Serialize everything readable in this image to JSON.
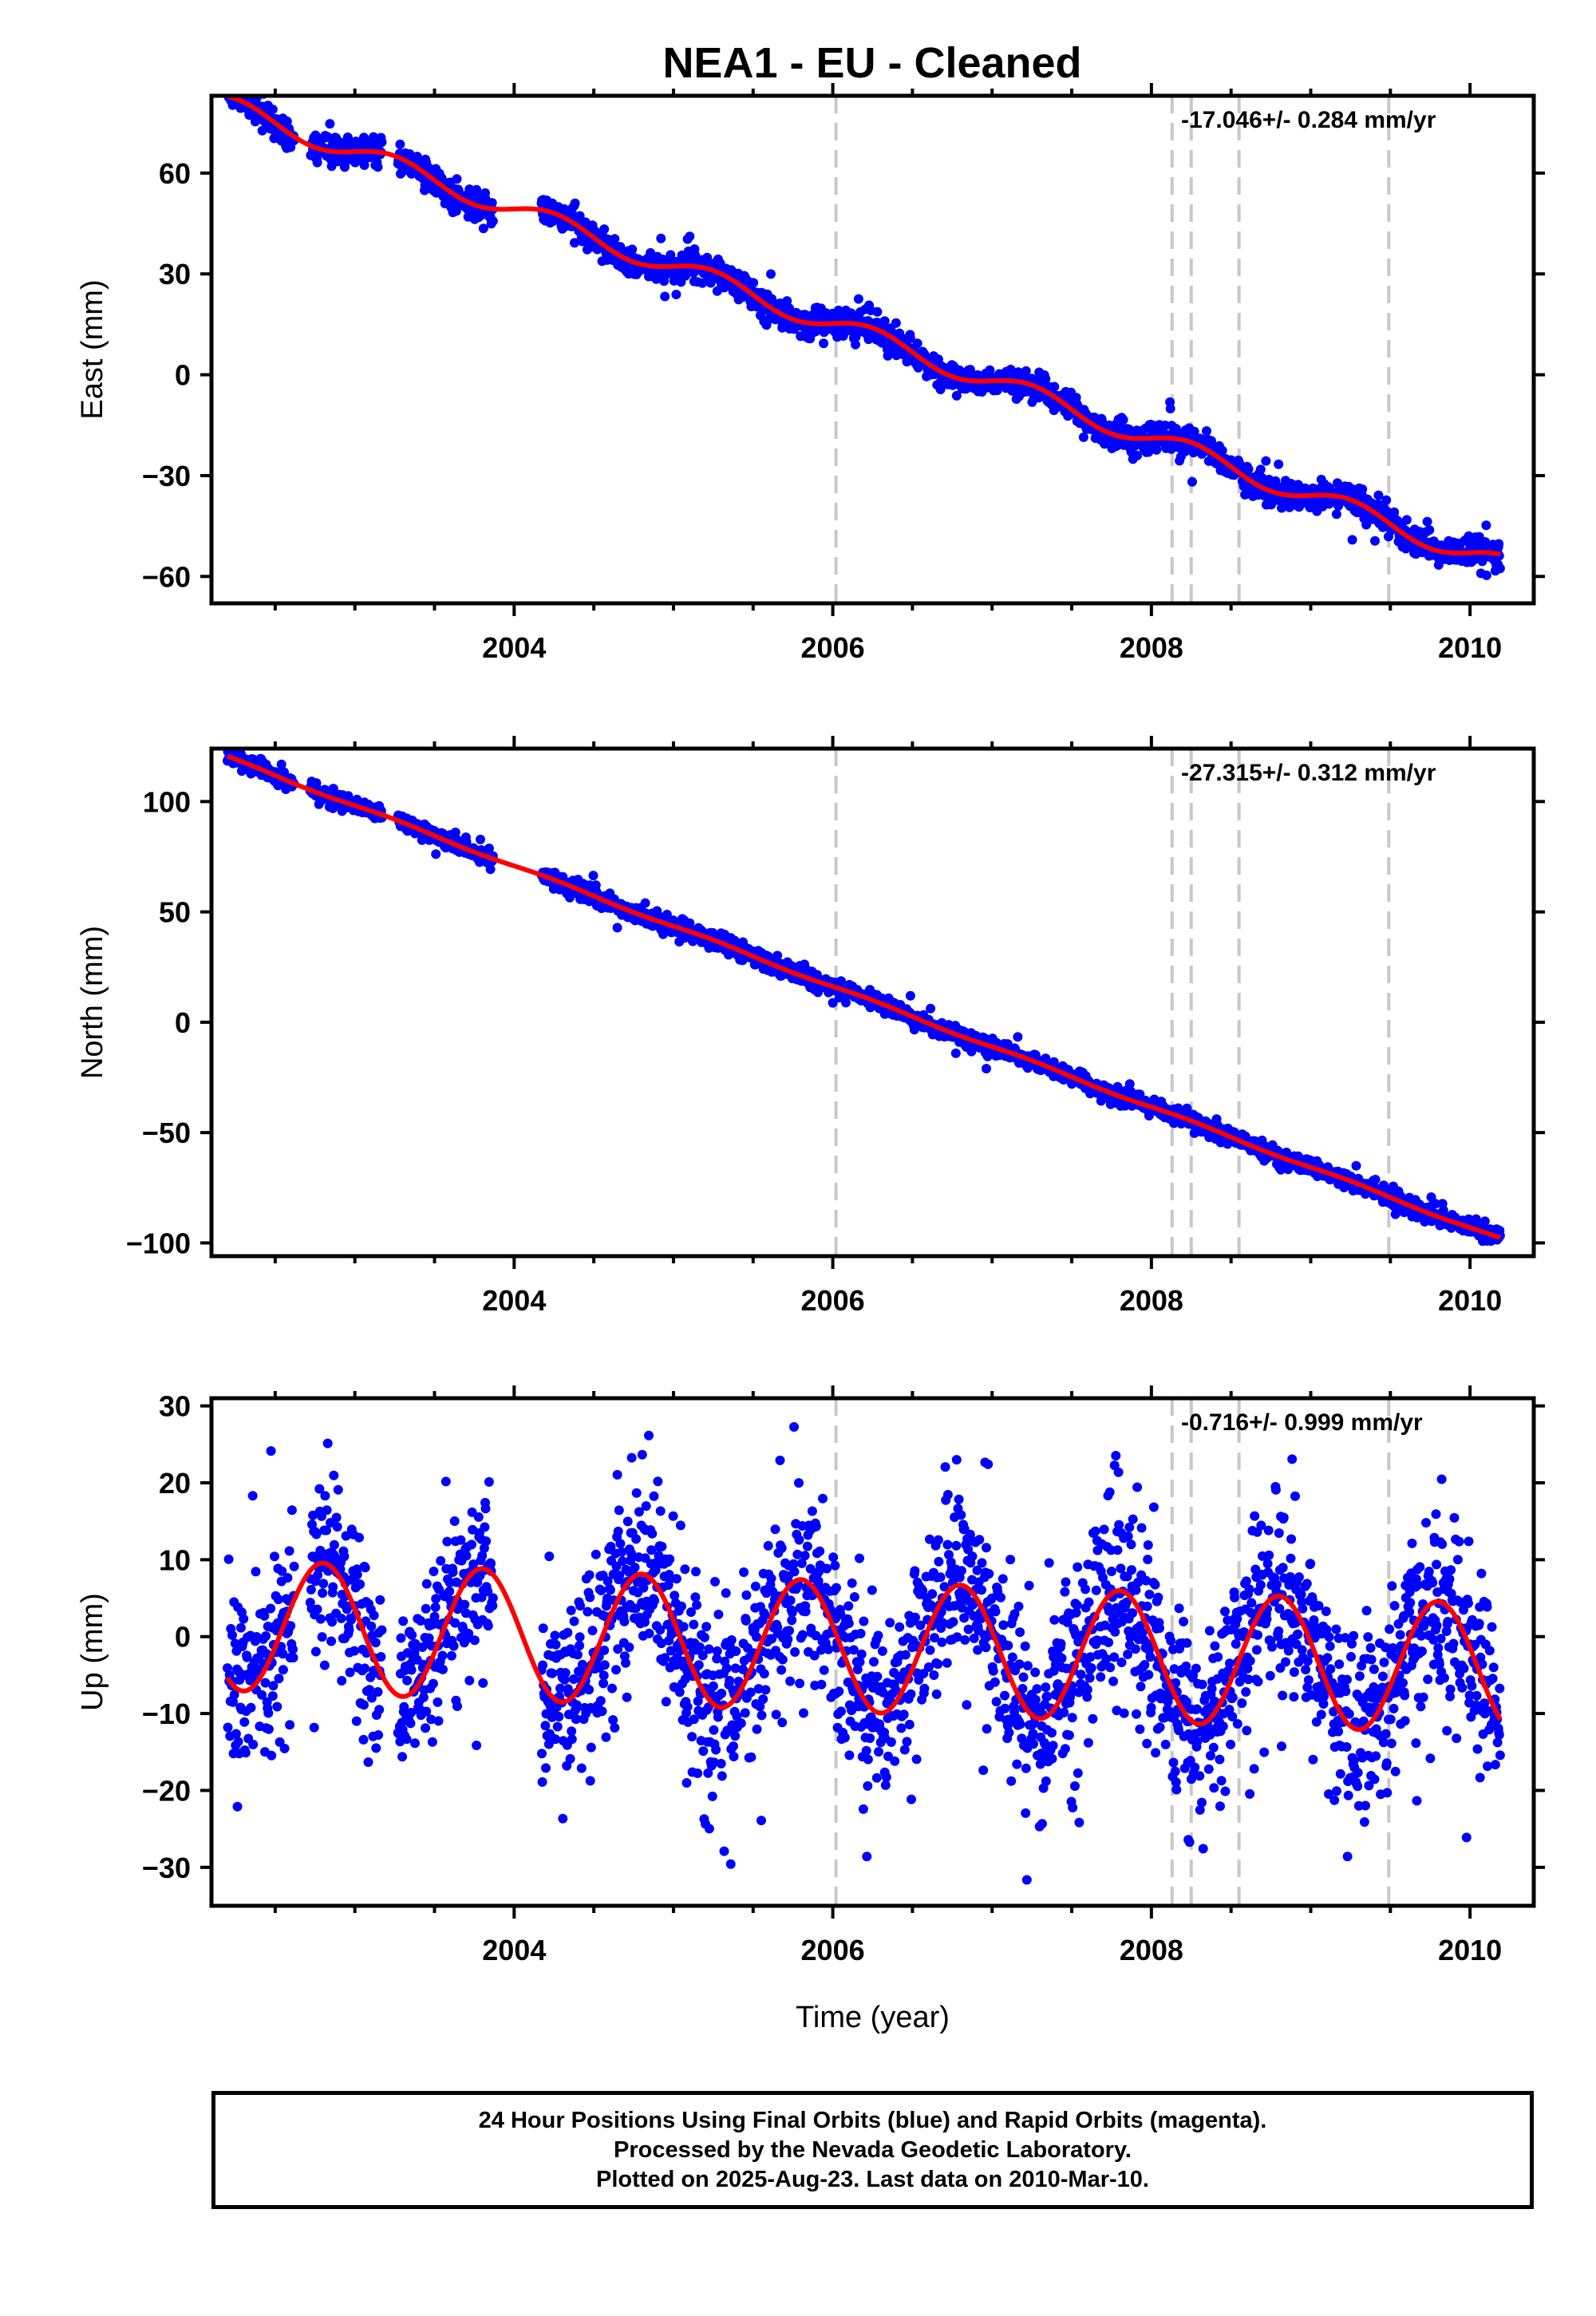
{
  "title": "NEA1  - EU - Cleaned",
  "colors": {
    "data": "#0000ff",
    "model": "#ff0000",
    "event_line": "#c8c8c8",
    "frame": "#000000"
  },
  "chart_data": [
    {
      "type": "scatter",
      "ylabel": "East (mm)",
      "rate_label": "-17.046+/- 0.284 mm/yr",
      "xlim": [
        2002.1,
        2010.4
      ],
      "ylim": [
        -68,
        83
      ],
      "yticks": [
        60,
        30,
        0,
        -30,
        -60
      ],
      "ytick_labels": [
        "60",
        "30",
        "0",
        "−30",
        "−60"
      ],
      "xticks": [
        2004,
        2006,
        2008,
        2010
      ],
      "xtick_labels": [
        "2004",
        "2006",
        "2008",
        "2010"
      ],
      "event_lines": [
        2006.02,
        2008.13,
        2008.25,
        2008.55,
        2009.49
      ],
      "data_gaps": [
        [
          2002.62,
          2002.72
        ],
        [
          2003.17,
          2003.27
        ],
        [
          2003.87,
          2004.17
        ]
      ],
      "model": {
        "x0": 2002.2,
        "intercept": 80.0,
        "rate": -17.046,
        "annual": 3.0,
        "phase": 0.0,
        "semiannual": 0.0,
        "noise_sd": 2.0,
        "outlier_sd": 5.0
      }
    },
    {
      "type": "scatter",
      "ylabel": "North (mm)",
      "rate_label": "-27.315+/- 0.312 mm/yr",
      "xlim": [
        2002.1,
        2010.4
      ],
      "ylim": [
        -106,
        124
      ],
      "yticks": [
        100,
        50,
        0,
        -50,
        -100
      ],
      "ytick_labels": [
        "100",
        "50",
        "0",
        "−50",
        "−100"
      ],
      "xticks": [
        2004,
        2006,
        2008,
        2010
      ],
      "xtick_labels": [
        "2004",
        "2006",
        "2008",
        "2010"
      ],
      "event_lines": [
        2006.02,
        2008.13,
        2008.25,
        2008.55,
        2009.49
      ],
      "data_gaps": [
        [
          2002.62,
          2002.72
        ],
        [
          2003.17,
          2003.27
        ],
        [
          2003.87,
          2004.17
        ]
      ],
      "model": {
        "x0": 2002.2,
        "intercept": 120.0,
        "rate": -27.315,
        "annual": 0.6,
        "phase": 0.0,
        "semiannual": 0.0,
        "noise_sd": 1.8,
        "outlier_sd": 4.0
      }
    },
    {
      "type": "scatter",
      "ylabel": "Up (mm)",
      "xlabel": "Time (year)",
      "rate_label": "-0.716+/- 0.999 mm/yr",
      "xlim": [
        2002.1,
        2010.4
      ],
      "ylim": [
        -35,
        31
      ],
      "yticks": [
        30,
        20,
        10,
        0,
        -10,
        -20,
        -30
      ],
      "ytick_labels": [
        "30",
        "20",
        "10",
        "0",
        "−10",
        "−20",
        "−30"
      ],
      "xticks": [
        2004,
        2006,
        2008,
        2010
      ],
      "xtick_labels": [
        "2004",
        "2006",
        "2008",
        "2010"
      ],
      "event_lines": [
        2006.02,
        2008.13,
        2008.25,
        2008.55,
        2009.49
      ],
      "data_gaps": [
        [
          2002.62,
          2002.72
        ],
        [
          2003.17,
          2003.27
        ],
        [
          2003.87,
          2004.17
        ]
      ],
      "model": {
        "x0": 2002.2,
        "intercept": 1.5,
        "rate": -0.716,
        "annual": 8.5,
        "phase": 0.55,
        "semiannual": 0.0,
        "noise_sd": 6.0,
        "outlier_sd": 12.0
      }
    }
  ],
  "footer": {
    "line1": "24 Hour Positions Using Final Orbits (blue) and Rapid Orbits (magenta).",
    "line2": "Processed by the Nevada Geodetic Laboratory.",
    "line3": "Plotted on 2025-Aug-23. Last data on 2010-Mar-10."
  }
}
